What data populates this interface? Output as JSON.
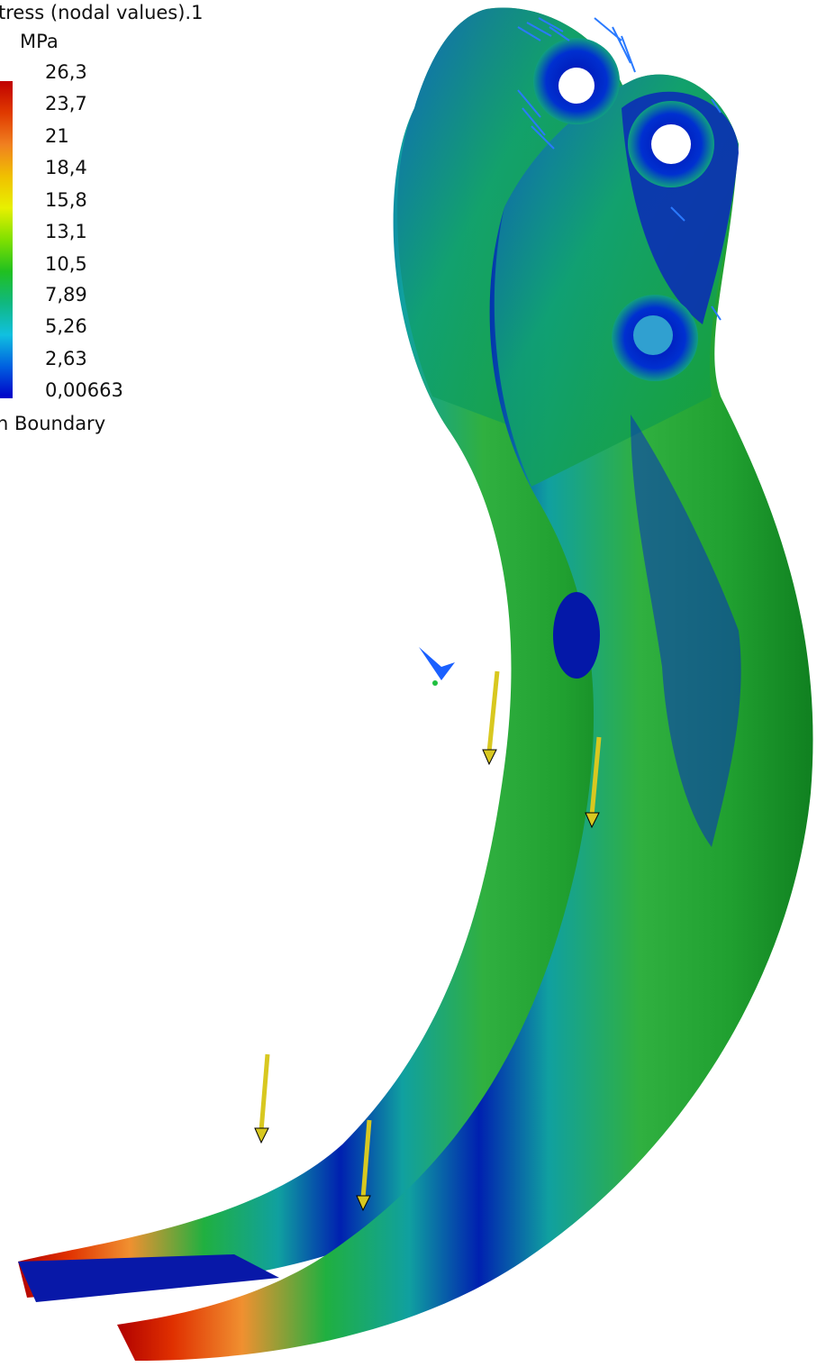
{
  "legend": {
    "title": "tress (nodal values).1",
    "unit": "MPa",
    "ticks": [
      "26,3",
      "23,7",
      "21",
      "18,4",
      "15,8",
      "13,1",
      "10,5",
      "7,89",
      "5,26",
      "2,63",
      "0,00663"
    ],
    "footer": "n Boundary"
  },
  "colors": {
    "high": "#c00000",
    "mid": "#20c020",
    "low": "#0000c8",
    "load_arrow": "#d8c820",
    "restraint": "#2a7aff"
  },
  "icons": {
    "load": "load-arrow-icon",
    "restraint": "clamp-restraint-icon",
    "axis": "view-axis-icon"
  }
}
